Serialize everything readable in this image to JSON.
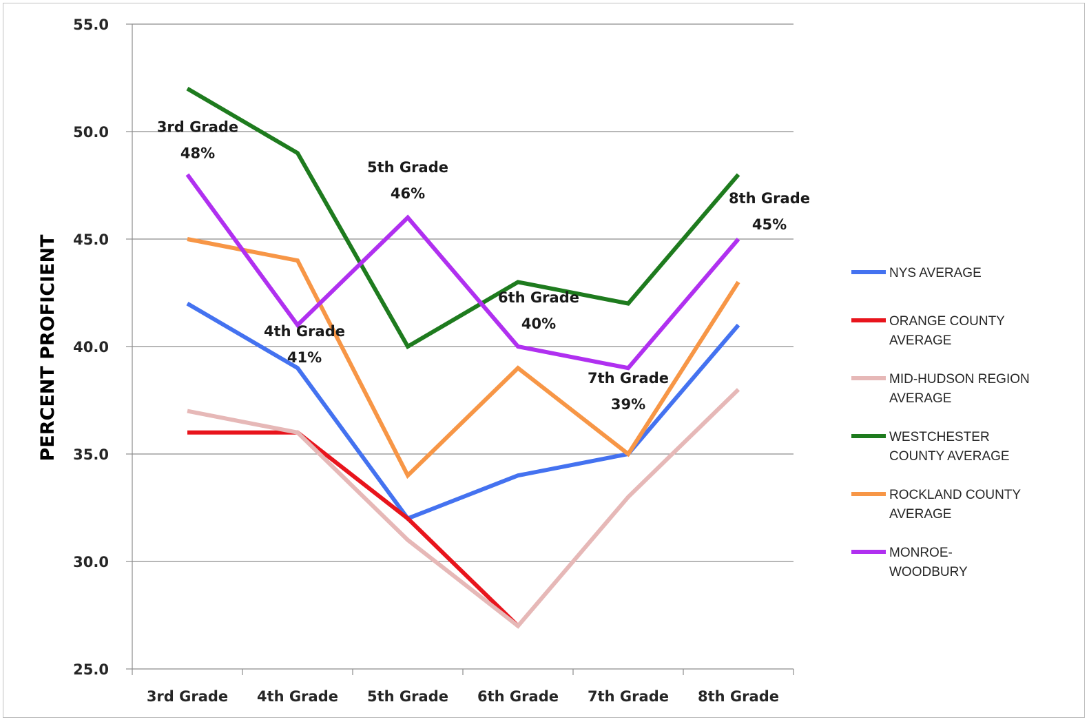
{
  "chart_data": {
    "type": "line",
    "title": "",
    "xlabel": "",
    "ylabel": "PERCENT PROFICIENT",
    "ylim": [
      25,
      55
    ],
    "yticks": [
      "55.0",
      "50.0",
      "45.0",
      "40.0",
      "35.0",
      "30.0",
      "25.0"
    ],
    "grid": true,
    "legend_position": "right",
    "categories": [
      "3rd Grade",
      "4th Grade",
      "5th Grade",
      "6th Grade",
      "7th Grade",
      "8th Grade"
    ],
    "series": [
      {
        "name": "NYS AVERAGE",
        "legend_lines": [
          "NYS AVERAGE"
        ],
        "color": "#4472f0",
        "values": [
          42,
          39,
          32,
          34,
          35,
          41
        ]
      },
      {
        "name": "ORANGE COUNTY AVERAGE",
        "legend_lines": [
          "ORANGE COUNTY",
          "AVERAGE"
        ],
        "color": "#e8141c",
        "values": [
          36,
          36,
          32,
          27,
          null,
          null
        ]
      },
      {
        "name": "MID-HUDSON REGION AVERAGE",
        "legend_lines": [
          "MID-HUDSON REGION",
          "AVERAGE"
        ],
        "color": "#e6b8b7",
        "values": [
          37,
          36,
          31,
          27,
          33,
          38
        ]
      },
      {
        "name": "WESTCHESTER COUNTY AVERAGE",
        "legend_lines": [
          "WESTCHESTER",
          "COUNTY AVERAGE"
        ],
        "color": "#1e7b1e",
        "values": [
          52,
          49,
          40,
          43,
          42,
          48
        ]
      },
      {
        "name": "ROCKLAND COUNTY AVERAGE",
        "legend_lines": [
          "ROCKLAND COUNTY",
          "AVERAGE"
        ],
        "color": "#f79646",
        "values": [
          45,
          44,
          34,
          39,
          35,
          43
        ]
      },
      {
        "name": "MONROE-WOODBURY",
        "legend_lines": [
          "MONROE-",
          "WOODBURY"
        ],
        "color": "#b030f0",
        "values": [
          48,
          41,
          46,
          40,
          39,
          45
        ]
      }
    ],
    "annotations": [
      {
        "category": "3rd Grade",
        "line1": "3rd Grade",
        "line2": "48%"
      },
      {
        "category": "4th Grade",
        "line1": "4th Grade",
        "line2": "41%"
      },
      {
        "category": "5th Grade",
        "line1": "5th Grade",
        "line2": "46%"
      },
      {
        "category": "6th Grade",
        "line1": "6th Grade",
        "line2": "40%"
      },
      {
        "category": "7th Grade",
        "line1": "7th Grade",
        "line2": "39%"
      },
      {
        "category": "8th Grade",
        "line1": "8th Grade",
        "line2": "45%"
      }
    ]
  }
}
